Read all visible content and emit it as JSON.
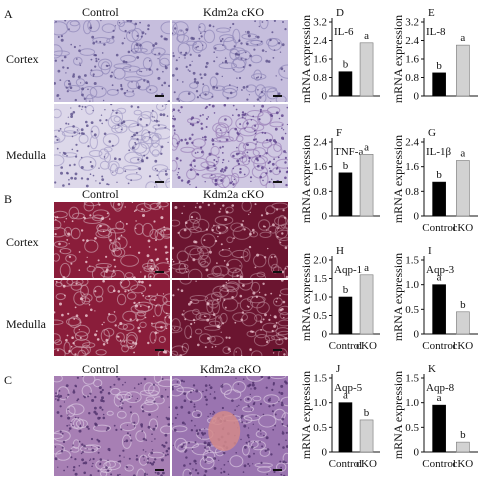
{
  "panels": {
    "A": {
      "letter": "A",
      "col_labels": [
        "Control",
        "Kdm2a cKO"
      ],
      "row_labels": [
        "Cortex",
        "Medulla"
      ]
    },
    "B": {
      "letter": "B",
      "col_labels": [
        "Control",
        "Kdm2a cKO"
      ],
      "row_labels": [
        "Cortex",
        "Medulla"
      ]
    },
    "C": {
      "letter": "C",
      "col_labels": [
        "Control",
        "Kdm2a cKO"
      ]
    }
  },
  "stain_colors": {
    "A_top": "#c6bedd",
    "A_bottom": "#cfc8e2",
    "B": "#8a1d3a",
    "B_dark": "#6b1530",
    "C_left": "#a77fb4",
    "C_right": "#9a74b0",
    "C_lesion": "#d48a8a"
  },
  "bar_colors": {
    "control": "#000000",
    "cko": "#d2d2d2"
  },
  "chart_data": [
    {
      "letter": "D",
      "type": "bar",
      "title": "IL-6",
      "ylabel": "mRNA expression",
      "categories": [
        "",
        ""
      ],
      "values": [
        1.05,
        2.3
      ],
      "ylim": [
        0,
        3.2
      ],
      "yticks": [
        "0",
        "0.8",
        "1.6",
        "2.4",
        "3.2"
      ],
      "sig": [
        "b",
        "a"
      ]
    },
    {
      "letter": "E",
      "type": "bar",
      "title": "IL-8",
      "ylabel": "mRNA expression",
      "categories": [
        "",
        ""
      ],
      "values": [
        1.0,
        2.2
      ],
      "ylim": [
        0,
        3.2
      ],
      "yticks": [
        "0",
        "0.8",
        "1.6",
        "2.4",
        "3.2"
      ],
      "sig": [
        "b",
        "a"
      ]
    },
    {
      "letter": "F",
      "type": "bar",
      "title": "TNF-a",
      "ylabel": "mRNA expression",
      "categories": [
        "",
        ""
      ],
      "values": [
        1.4,
        2.0
      ],
      "ylim": [
        0,
        2.4
      ],
      "yticks": [
        "0",
        "0.8",
        "1.6",
        "2.4"
      ],
      "sig": [
        "b",
        "a"
      ]
    },
    {
      "letter": "G",
      "type": "bar",
      "title": "IL-1β",
      "ylabel": "mRNA expression",
      "categories": [
        "Control",
        "cKO"
      ],
      "values": [
        1.1,
        1.8
      ],
      "ylim": [
        0,
        2.4
      ],
      "yticks": [
        "0",
        "0.8",
        "1.6",
        "2.4"
      ],
      "sig": [
        "b",
        "a"
      ]
    },
    {
      "letter": "H",
      "type": "bar",
      "title": "Aqp-1",
      "ylabel": "mRNA expression",
      "categories": [
        "Control",
        "cKO"
      ],
      "values": [
        1.0,
        1.6
      ],
      "ylim": [
        0,
        2.0
      ],
      "yticks": [
        "0",
        "0.5",
        "1.0",
        "1.5",
        "2.0"
      ],
      "sig": [
        "b",
        "a"
      ]
    },
    {
      "letter": "I",
      "type": "bar",
      "title": "Aqp-3",
      "ylabel": "mRNA expression",
      "categories": [
        "Control",
        "cKO"
      ],
      "values": [
        1.0,
        0.45
      ],
      "ylim": [
        0,
        1.5
      ],
      "yticks": [
        "0",
        "0.5",
        "1.0",
        "1.5"
      ],
      "sig": [
        "a",
        "b"
      ]
    },
    {
      "letter": "J",
      "type": "bar",
      "title": "Aqp-5",
      "ylabel": "mRNA expression",
      "categories": [
        "Control",
        "cKO"
      ],
      "values": [
        1.0,
        0.65
      ],
      "ylim": [
        0,
        1.5
      ],
      "yticks": [
        "0",
        "0.5",
        "1.0",
        "1.5"
      ],
      "sig": [
        "a",
        "b"
      ]
    },
    {
      "letter": "K",
      "type": "bar",
      "title": "Aqp-8",
      "ylabel": "mRNA expression",
      "categories": [
        "Control",
        "cKO"
      ],
      "values": [
        0.95,
        0.2
      ],
      "ylim": [
        0,
        1.5
      ],
      "yticks": [
        "0",
        "0.5",
        "1.0",
        "1.5"
      ],
      "sig": [
        "a",
        "b"
      ]
    }
  ]
}
